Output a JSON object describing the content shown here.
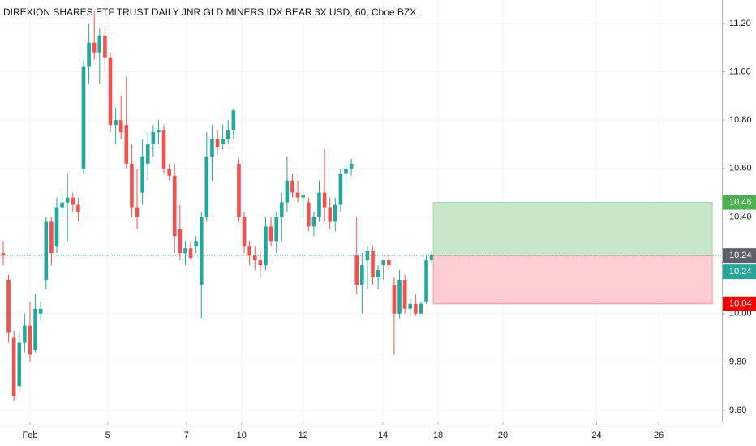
{
  "chart_data": {
    "type": "candlestick",
    "title": "DIREXION SHARES ETF TRUST DAILY JNR GLD MINERS IDX BEAR 3X USD, 60, Cboe BZX",
    "x": [
      0,
      1,
      2,
      3,
      4,
      5,
      6,
      7,
      8,
      9,
      10,
      11,
      12,
      13,
      14,
      15,
      16,
      17,
      18,
      19,
      20,
      21,
      22,
      23,
      24,
      25,
      26,
      27,
      28,
      29,
      30,
      31,
      32,
      33,
      34,
      35,
      36,
      37,
      38,
      39,
      40,
      41,
      42,
      43,
      44,
      45,
      46,
      47,
      48,
      49,
      50,
      51,
      52,
      53,
      54,
      55,
      56,
      57,
      58,
      59,
      60,
      61,
      62,
      63,
      64,
      65,
      66,
      67,
      68,
      69,
      70,
      71,
      72,
      73,
      74,
      75,
      76,
      77,
      78,
      79,
      80
    ],
    "open": [
      10.25,
      10.14,
      9.9,
      9.7,
      9.88,
      9.95,
      9.85,
      10.0,
      10.14,
      10.38,
      10.28,
      10.44,
      10.46,
      10.48,
      10.45,
      10.6,
      11.02,
      11.12,
      11.08,
      11.15,
      11.06,
      10.78,
      10.8,
      10.78,
      10.62,
      10.44,
      10.5,
      10.62,
      10.7,
      10.75,
      10.76,
      10.6,
      10.57,
      10.35,
      10.25,
      10.27,
      10.28,
      10.12,
      10.4,
      10.65,
      10.72,
      10.7,
      10.72,
      10.76,
      10.62,
      10.4,
      10.28,
      10.24,
      10.22,
      10.2,
      10.36,
      10.3,
      10.4,
      10.46,
      10.55,
      10.5,
      10.48,
      10.46,
      10.36,
      10.4,
      10.5,
      10.44,
      10.38,
      10.45,
      10.58,
      10.6,
      10.24,
      10.12,
      10.22,
      10.26,
      10.15,
      10.2,
      10.22,
      10.12,
      10.0,
      10.14,
      10.02,
      10.04,
      10.0,
      10.05,
      10.22
    ],
    "high": [
      10.3,
      10.16,
      9.93,
      9.92,
      10.0,
      10.05,
      10.08,
      10.05,
      10.4,
      10.4,
      10.48,
      10.5,
      10.58,
      10.5,
      10.48,
      11.05,
      11.2,
      11.25,
      11.18,
      11.18,
      11.08,
      10.85,
      10.9,
      10.98,
      10.7,
      10.6,
      10.72,
      10.75,
      10.78,
      10.8,
      10.78,
      10.62,
      10.62,
      10.45,
      10.3,
      10.3,
      10.32,
      10.42,
      10.75,
      10.78,
      10.76,
      10.78,
      10.8,
      10.85,
      10.64,
      10.42,
      10.3,
      10.28,
      10.26,
      10.4,
      10.4,
      10.42,
      10.5,
      10.65,
      10.58,
      10.55,
      10.5,
      10.48,
      10.42,
      10.55,
      10.68,
      10.48,
      10.48,
      10.6,
      10.62,
      10.64,
      10.4,
      10.25,
      10.28,
      10.28,
      10.2,
      10.22,
      10.24,
      10.15,
      10.18,
      10.16,
      10.06,
      10.08,
      10.05,
      10.24,
      10.26
    ],
    "low": [
      10.2,
      9.88,
      9.64,
      9.68,
      9.84,
      9.8,
      9.84,
      9.97,
      10.1,
      10.2,
      10.25,
      10.4,
      10.3,
      10.42,
      10.38,
      10.58,
      10.95,
      11.05,
      10.95,
      11.0,
      10.75,
      10.7,
      10.72,
      10.6,
      10.4,
      10.35,
      10.45,
      10.55,
      10.65,
      10.7,
      10.58,
      10.55,
      10.25,
      10.22,
      10.2,
      10.22,
      10.25,
      9.98,
      10.38,
      10.55,
      10.66,
      10.68,
      10.7,
      10.72,
      10.38,
      10.25,
      10.2,
      10.18,
      10.15,
      10.18,
      10.28,
      10.25,
      10.3,
      10.42,
      10.48,
      10.46,
      10.4,
      10.34,
      10.32,
      10.38,
      10.38,
      10.35,
      10.34,
      10.42,
      10.5,
      10.57,
      10.08,
      10.0,
      10.1,
      10.12,
      10.1,
      10.14,
      10.18,
      9.83,
      9.98,
      10.0,
      9.99,
      9.99,
      10.0,
      10.04,
      10.21
    ],
    "close": [
      10.24,
      9.92,
      9.66,
      9.88,
      9.95,
      9.83,
      10.02,
      10.02,
      10.38,
      10.25,
      10.44,
      10.46,
      10.48,
      10.45,
      10.42,
      11.02,
      11.12,
      11.08,
      11.15,
      11.06,
      10.78,
      10.8,
      10.75,
      10.62,
      10.44,
      10.4,
      10.65,
      10.7,
      10.75,
      10.76,
      10.6,
      10.57,
      10.32,
      10.25,
      10.27,
      10.23,
      10.3,
      10.4,
      10.65,
      10.72,
      10.69,
      10.72,
      10.76,
      10.84,
      10.4,
      10.28,
      10.24,
      10.22,
      10.2,
      10.36,
      10.3,
      10.4,
      10.46,
      10.55,
      10.5,
      10.48,
      10.49,
      10.36,
      10.4,
      10.5,
      10.44,
      10.38,
      10.45,
      10.58,
      10.6,
      10.62,
      10.12,
      10.2,
      10.26,
      10.15,
      10.18,
      10.22,
      10.2,
      10.0,
      10.14,
      10.02,
      10.04,
      10.0,
      10.04,
      10.22,
      10.24
    ],
    "up_color": "#26a69a",
    "down_color": "#ef5350",
    "xlim": [
      -0.6,
      134.2
    ],
    "xticks": [
      {
        "value": 5,
        "label": "Feb"
      },
      {
        "value": 19.5,
        "label": "5"
      },
      {
        "value": 34.2,
        "label": "7"
      },
      {
        "value": 44.5,
        "label": "10"
      },
      {
        "value": 56,
        "label": "12"
      },
      {
        "value": 70.9,
        "label": "14"
      },
      {
        "value": 81.2,
        "label": "18"
      },
      {
        "value": 93.3,
        "label": "20"
      },
      {
        "value": 110.8,
        "label": "24"
      },
      {
        "value": 122.4,
        "label": "26"
      }
    ],
    "ylim": [
      9.553,
      11.297
    ],
    "yticks": [
      {
        "value": 11.2,
        "label": "11.20"
      },
      {
        "value": 11.0,
        "label": "11.00"
      },
      {
        "value": 10.8,
        "label": "10.80"
      },
      {
        "value": 10.6,
        "label": "10.60"
      },
      {
        "value": 10.4,
        "label": "10.40"
      },
      {
        "value": 10.0,
        "label": "10.00"
      },
      {
        "value": 9.8,
        "label": "9.80"
      },
      {
        "value": 9.6,
        "label": "9.60"
      }
    ],
    "grid": true,
    "last_price": 10.24,
    "position": {
      "entry": 10.24,
      "target": 10.46,
      "stop": 10.04,
      "x_start": 80.3,
      "x_end": 132.4,
      "profit_color": "#c8e6c9",
      "loss_color": "#ffcdd2",
      "target_color": "#4caf50",
      "stop_color": "#f20000",
      "entry_color": "#5d606b"
    }
  }
}
